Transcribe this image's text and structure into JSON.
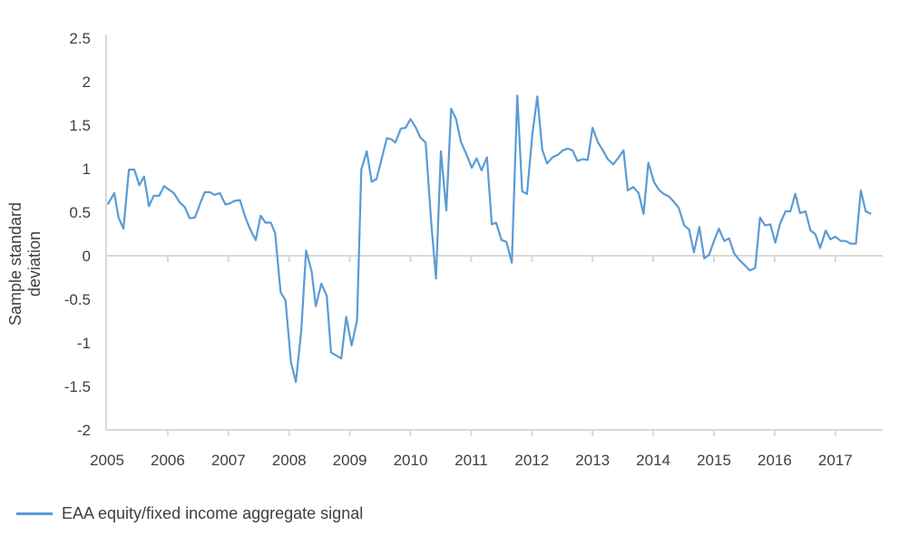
{
  "chart_data": {
    "type": "line",
    "title": "",
    "xlabel": "",
    "ylabel": "Sample standard deviation",
    "xlim": [
      2005,
      2017.8
    ],
    "ylim": [
      -2,
      2.5
    ],
    "x_ticks": [
      "2005",
      "2006",
      "2007",
      "2008",
      "2009",
      "2010",
      "2011",
      "2012",
      "2013",
      "2014",
      "2015",
      "2016",
      "2017"
    ],
    "y_ticks": [
      "2.5",
      "2",
      "1.5",
      "1",
      "0.5",
      "0",
      "-0.5",
      "-1",
      "-1.5",
      "-2"
    ],
    "y_tick_values": [
      2.5,
      2,
      1.5,
      1,
      0.5,
      0,
      -0.5,
      -1,
      -1.5,
      -2
    ],
    "grid": false,
    "legend_position": "bottom-left",
    "color": "#5b9bd5",
    "series": [
      {
        "name": "EAA equity/fixed income aggregate signal",
        "points": [
          [
            2005.01,
            0.59
          ],
          [
            2005.12,
            0.72
          ],
          [
            2005.19,
            0.44
          ],
          [
            2005.27,
            0.31
          ],
          [
            2005.36,
            0.99
          ],
          [
            2005.45,
            0.99
          ],
          [
            2005.53,
            0.81
          ],
          [
            2005.61,
            0.91
          ],
          [
            2005.69,
            0.57
          ],
          [
            2005.77,
            0.69
          ],
          [
            2005.86,
            0.69
          ],
          [
            2005.94,
            0.8
          ],
          [
            2006.1,
            0.72
          ],
          [
            2006.2,
            0.61
          ],
          [
            2006.28,
            0.56
          ],
          [
            2006.36,
            0.43
          ],
          [
            2006.45,
            0.44
          ],
          [
            2006.54,
            0.61
          ],
          [
            2006.61,
            0.73
          ],
          [
            2006.7,
            0.73
          ],
          [
            2006.77,
            0.7
          ],
          [
            2006.86,
            0.72
          ],
          [
            2006.95,
            0.59
          ],
          [
            2007.02,
            0.6
          ],
          [
            2007.1,
            0.63
          ],
          [
            2007.19,
            0.64
          ],
          [
            2007.28,
            0.44
          ],
          [
            2007.36,
            0.3
          ],
          [
            2007.45,
            0.18
          ],
          [
            2007.53,
            0.46
          ],
          [
            2007.61,
            0.38
          ],
          [
            2007.7,
            0.38
          ],
          [
            2007.77,
            0.26
          ],
          [
            2007.86,
            -0.42
          ],
          [
            2007.94,
            -0.51
          ],
          [
            2008.03,
            -1.22
          ],
          [
            2008.11,
            -1.45
          ],
          [
            2008.2,
            -0.86
          ],
          [
            2008.28,
            0.06
          ],
          [
            2008.37,
            -0.18
          ],
          [
            2008.44,
            -0.58
          ],
          [
            2008.53,
            -0.32
          ],
          [
            2008.62,
            -0.46
          ],
          [
            2008.69,
            -1.11
          ],
          [
            2008.86,
            -1.18
          ],
          [
            2008.94,
            -0.7
          ],
          [
            2009.03,
            -1.03
          ],
          [
            2009.12,
            -0.74
          ],
          [
            2009.19,
            0.99
          ],
          [
            2009.28,
            1.2
          ],
          [
            2009.36,
            0.85
          ],
          [
            2009.44,
            0.88
          ],
          [
            2009.52,
            1.1
          ],
          [
            2009.61,
            1.35
          ],
          [
            2009.68,
            1.34
          ],
          [
            2009.75,
            1.3
          ],
          [
            2009.84,
            1.46
          ],
          [
            2009.92,
            1.47
          ],
          [
            2010.0,
            1.57
          ],
          [
            2010.09,
            1.47
          ],
          [
            2010.16,
            1.36
          ],
          [
            2010.25,
            1.3
          ],
          [
            2010.34,
            0.4
          ],
          [
            2010.42,
            -0.26
          ],
          [
            2010.5,
            1.2
          ],
          [
            2010.59,
            0.52
          ],
          [
            2010.67,
            1.69
          ],
          [
            2010.75,
            1.57
          ],
          [
            2010.83,
            1.31
          ],
          [
            2010.92,
            1.17
          ],
          [
            2011.01,
            1.01
          ],
          [
            2011.09,
            1.12
          ],
          [
            2011.17,
            0.98
          ],
          [
            2011.26,
            1.13
          ],
          [
            2011.34,
            0.36
          ],
          [
            2011.41,
            0.38
          ],
          [
            2011.5,
            0.18
          ],
          [
            2011.58,
            0.16
          ],
          [
            2011.67,
            -0.08
          ],
          [
            2011.76,
            1.84
          ],
          [
            2011.84,
            0.74
          ],
          [
            2011.92,
            0.71
          ],
          [
            2012.01,
            1.41
          ],
          [
            2012.09,
            1.83
          ],
          [
            2012.17,
            1.22
          ],
          [
            2012.25,
            1.06
          ],
          [
            2012.34,
            1.13
          ],
          [
            2012.43,
            1.16
          ],
          [
            2012.51,
            1.21
          ],
          [
            2012.59,
            1.23
          ],
          [
            2012.67,
            1.21
          ],
          [
            2012.75,
            1.09
          ],
          [
            2012.84,
            1.11
          ],
          [
            2012.92,
            1.1
          ],
          [
            2013.0,
            1.47
          ],
          [
            2013.09,
            1.3
          ],
          [
            2013.17,
            1.21
          ],
          [
            2013.25,
            1.11
          ],
          [
            2013.34,
            1.05
          ],
          [
            2013.43,
            1.13
          ],
          [
            2013.51,
            1.21
          ],
          [
            2013.58,
            0.75
          ],
          [
            2013.67,
            0.79
          ],
          [
            2013.76,
            0.72
          ],
          [
            2013.84,
            0.48
          ],
          [
            2013.92,
            1.07
          ],
          [
            2014.01,
            0.85
          ],
          [
            2014.09,
            0.76
          ],
          [
            2014.17,
            0.71
          ],
          [
            2014.26,
            0.68
          ],
          [
            2014.34,
            0.62
          ],
          [
            2014.42,
            0.55
          ],
          [
            2014.51,
            0.35
          ],
          [
            2014.59,
            0.3
          ],
          [
            2014.67,
            0.04
          ],
          [
            2014.76,
            0.33
          ],
          [
            2014.84,
            -0.03
          ],
          [
            2014.92,
            0.01
          ],
          [
            2015.0,
            0.17
          ],
          [
            2015.08,
            0.31
          ],
          [
            2015.17,
            0.17
          ],
          [
            2015.25,
            0.2
          ],
          [
            2015.33,
            0.03
          ],
          [
            2015.42,
            -0.05
          ],
          [
            2015.51,
            -0.11
          ],
          [
            2015.59,
            -0.17
          ],
          [
            2015.68,
            -0.14
          ],
          [
            2015.76,
            0.44
          ],
          [
            2015.84,
            0.35
          ],
          [
            2015.93,
            0.36
          ],
          [
            2016.01,
            0.15
          ],
          [
            2016.09,
            0.37
          ],
          [
            2016.18,
            0.51
          ],
          [
            2016.26,
            0.51
          ],
          [
            2016.34,
            0.71
          ],
          [
            2016.42,
            0.49
          ],
          [
            2016.51,
            0.51
          ],
          [
            2016.59,
            0.29
          ],
          [
            2016.67,
            0.25
          ],
          [
            2016.75,
            0.09
          ],
          [
            2016.84,
            0.29
          ],
          [
            2016.92,
            0.19
          ],
          [
            2017.0,
            0.22
          ],
          [
            2017.09,
            0.17
          ],
          [
            2017.17,
            0.17
          ],
          [
            2017.25,
            0.14
          ],
          [
            2017.34,
            0.14
          ],
          [
            2017.42,
            0.75
          ],
          [
            2017.5,
            0.51
          ],
          [
            2017.59,
            0.48
          ]
        ]
      }
    ]
  }
}
